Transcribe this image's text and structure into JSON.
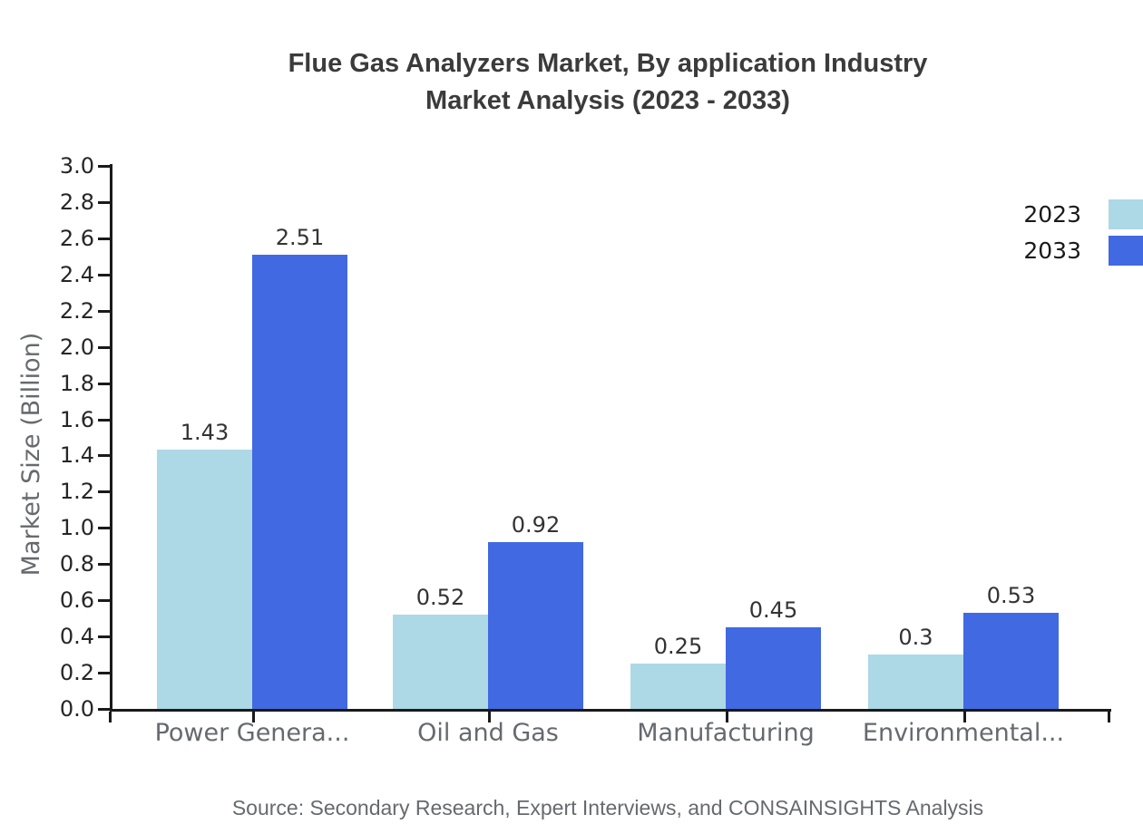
{
  "title": {
    "line1": "Flue Gas Analyzers Market, By application Industry",
    "line2": "Market Analysis (2023 - 2033)"
  },
  "y_axis_title": "Market Size (Billion)",
  "source": "Source: Secondary Research, Expert Interviews, and CONSAINSIGHTS Analysis",
  "colors": {
    "series_2023": "#ADD8E6",
    "series_2033": "#4169E1",
    "axis": "#1a1a1a"
  },
  "legend": {
    "items": [
      {
        "label": "2023",
        "color": "#ADD8E6"
      },
      {
        "label": "2033",
        "color": "#4169E1"
      }
    ]
  },
  "chart_data": {
    "type": "bar",
    "title": "Flue Gas Analyzers Market, By application Industry Market Analysis (2023 - 2033)",
    "categories": [
      "Power Genera...",
      "Oil and Gas",
      "Manufacturing",
      "Environmental..."
    ],
    "series": [
      {
        "name": "2023",
        "color": "#ADD8E6",
        "values": [
          1.43,
          0.52,
          0.25,
          0.3
        ],
        "labels": [
          "1.43",
          "0.52",
          "0.25",
          "0.3"
        ]
      },
      {
        "name": "2033",
        "color": "#4169E1",
        "values": [
          2.51,
          0.92,
          0.45,
          0.53
        ],
        "labels": [
          "2.51",
          "0.92",
          "0.45",
          "0.53"
        ]
      }
    ],
    "xlabel": "",
    "ylabel": "Market Size (Billion)",
    "ylim": [
      0,
      3.0
    ],
    "ytick_step": 0.2,
    "ytick_labels": [
      "0.0",
      "0.2",
      "0.4",
      "0.6",
      "0.8",
      "1.0",
      "1.2",
      "1.4",
      "1.6",
      "1.8",
      "2.0",
      "2.2",
      "2.4",
      "2.6",
      "2.8",
      "3.0"
    ],
    "grid": false,
    "legend_position": "right",
    "data_labels_shown": true
  }
}
